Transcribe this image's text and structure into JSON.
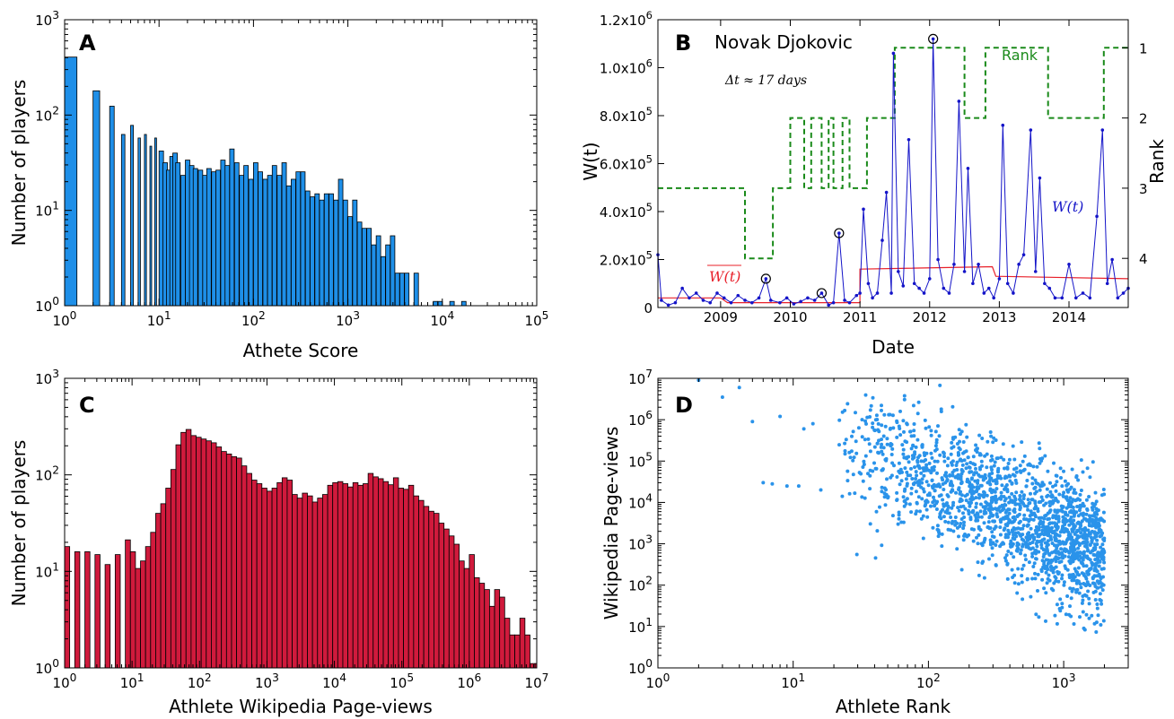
{
  "chart_data": [
    {
      "panel": "A",
      "type": "bar",
      "xscale": "log",
      "yscale": "log",
      "xlim": [
        1,
        100000
      ],
      "ylim": [
        0.9,
        1000
      ],
      "xlabel": "Athete Score",
      "ylabel": "Number of players",
      "x_ticks": [
        "10^0",
        "10^1",
        "10^2",
        "10^3",
        "10^4",
        "10^5"
      ],
      "y_ticks": [
        "10^0",
        "10^1",
        "10^2",
        "10^3"
      ],
      "color": "#1e8fe8",
      "bins": [
        {
          "x": 1,
          "y": 400
        },
        {
          "x": 2,
          "y": 175
        },
        {
          "x": 3,
          "y": 120
        },
        {
          "x": 4,
          "y": 60
        },
        {
          "x": 5,
          "y": 75
        },
        {
          "x": 6,
          "y": 55
        },
        {
          "x": 7,
          "y": 60
        },
        {
          "x": 8,
          "y": 45
        },
        {
          "x": 9,
          "y": 55
        },
        {
          "x": 10,
          "y": 40
        },
        {
          "x": 11,
          "y": 30
        },
        {
          "x": 12,
          "y": 25
        },
        {
          "x": 13,
          "y": 35
        },
        {
          "x": 14,
          "y": 38
        },
        {
          "x": 15,
          "y": 30
        },
        {
          "x": 17,
          "y": 22
        },
        {
          "x": 19,
          "y": 32
        },
        {
          "x": 21,
          "y": 28
        },
        {
          "x": 23,
          "y": 26
        },
        {
          "x": 26,
          "y": 25
        },
        {
          "x": 29,
          "y": 22
        },
        {
          "x": 32,
          "y": 26
        },
        {
          "x": 36,
          "y": 24
        },
        {
          "x": 40,
          "y": 25
        },
        {
          "x": 45,
          "y": 32
        },
        {
          "x": 50,
          "y": 28
        },
        {
          "x": 56,
          "y": 42
        },
        {
          "x": 63,
          "y": 30
        },
        {
          "x": 71,
          "y": 22
        },
        {
          "x": 79,
          "y": 28
        },
        {
          "x": 89,
          "y": 20
        },
        {
          "x": 100,
          "y": 30
        },
        {
          "x": 112,
          "y": 24
        },
        {
          "x": 126,
          "y": 20
        },
        {
          "x": 141,
          "y": 22
        },
        {
          "x": 158,
          "y": 28
        },
        {
          "x": 178,
          "y": 22
        },
        {
          "x": 200,
          "y": 30
        },
        {
          "x": 224,
          "y": 17
        },
        {
          "x": 251,
          "y": 20
        },
        {
          "x": 282,
          "y": 24
        },
        {
          "x": 316,
          "y": 24
        },
        {
          "x": 355,
          "y": 15
        },
        {
          "x": 398,
          "y": 13
        },
        {
          "x": 447,
          "y": 14
        },
        {
          "x": 501,
          "y": 12
        },
        {
          "x": 562,
          "y": 14
        },
        {
          "x": 631,
          "y": 14
        },
        {
          "x": 708,
          "y": 12
        },
        {
          "x": 794,
          "y": 20
        },
        {
          "x": 891,
          "y": 12
        },
        {
          "x": 1000,
          "y": 8
        },
        {
          "x": 1122,
          "y": 12
        },
        {
          "x": 1259,
          "y": 7
        },
        {
          "x": 1413,
          "y": 6
        },
        {
          "x": 1585,
          "y": 6
        },
        {
          "x": 1778,
          "y": 4
        },
        {
          "x": 1995,
          "y": 5
        },
        {
          "x": 2239,
          "y": 3
        },
        {
          "x": 2512,
          "y": 4
        },
        {
          "x": 2818,
          "y": 5
        },
        {
          "x": 3162,
          "y": 2
        },
        {
          "x": 3548,
          "y": 2
        },
        {
          "x": 3981,
          "y": 2
        },
        {
          "x": 5012,
          "y": 2
        },
        {
          "x": 8000,
          "y": 1
        },
        {
          "x": 9000,
          "y": 1
        },
        {
          "x": 12000,
          "y": 1
        },
        {
          "x": 16000,
          "y": 1
        }
      ]
    },
    {
      "panel": "B",
      "type": "line",
      "title": "Novak Djokovic",
      "annotation": "Δt ≈ 17 days",
      "xlabel": "Date",
      "ylabel_left": "W(t)",
      "ylabel_right": "Rank",
      "x_ticks": [
        "2009",
        "2010",
        "2011",
        "2012",
        "2013",
        "2014"
      ],
      "xlim": [
        2008.1,
        2014.85
      ],
      "y_left_lim": [
        0,
        1200000
      ],
      "y_left_ticks": [
        "0",
        "2.0x10^5",
        "4.0x10^5",
        "6.0x10^5",
        "8.0x10^5",
        "1.0x10^6",
        "1.2x10^6"
      ],
      "y_right_lim": [
        4.7,
        0.6
      ],
      "y_right_ticks": [
        "1",
        "2",
        "3",
        "4"
      ],
      "wt_label": "W(t)",
      "rank_label": "Rank",
      "threshold_label": "W(t)",
      "colors": {
        "wt": "#1414c8",
        "threshold": "#e8202a",
        "rank": "#1a8a1a"
      },
      "wt_series": [
        [
          2008.1,
          220000
        ],
        [
          2008.15,
          30000
        ],
        [
          2008.25,
          10000
        ],
        [
          2008.35,
          20000
        ],
        [
          2008.45,
          80000
        ],
        [
          2008.55,
          40000
        ],
        [
          2008.65,
          60000
        ],
        [
          2008.75,
          30000
        ],
        [
          2008.85,
          20000
        ],
        [
          2008.95,
          60000
        ],
        [
          2009.05,
          40000
        ],
        [
          2009.15,
          20000
        ],
        [
          2009.25,
          50000
        ],
        [
          2009.35,
          30000
        ],
        [
          2009.45,
          20000
        ],
        [
          2009.55,
          40000
        ],
        [
          2009.65,
          120000
        ],
        [
          2009.72,
          30000
        ],
        [
          2009.85,
          20000
        ],
        [
          2009.95,
          40000
        ],
        [
          2010.05,
          15000
        ],
        [
          2010.15,
          25000
        ],
        [
          2010.25,
          40000
        ],
        [
          2010.35,
          30000
        ],
        [
          2010.45,
          60000
        ],
        [
          2010.55,
          10000
        ],
        [
          2010.62,
          20000
        ],
        [
          2010.7,
          310000
        ],
        [
          2010.78,
          30000
        ],
        [
          2010.85,
          20000
        ],
        [
          2010.95,
          50000
        ],
        [
          2011.0,
          60000
        ],
        [
          2011.05,
          410000
        ],
        [
          2011.12,
          100000
        ],
        [
          2011.18,
          40000
        ],
        [
          2011.25,
          60000
        ],
        [
          2011.32,
          280000
        ],
        [
          2011.38,
          480000
        ],
        [
          2011.45,
          60000
        ],
        [
          2011.48,
          1060000
        ],
        [
          2011.55,
          150000
        ],
        [
          2011.62,
          90000
        ],
        [
          2011.7,
          700000
        ],
        [
          2011.78,
          100000
        ],
        [
          2011.85,
          80000
        ],
        [
          2011.92,
          60000
        ],
        [
          2012.0,
          120000
        ],
        [
          2012.05,
          1120000
        ],
        [
          2012.12,
          200000
        ],
        [
          2012.2,
          80000
        ],
        [
          2012.28,
          60000
        ],
        [
          2012.35,
          180000
        ],
        [
          2012.42,
          860000
        ],
        [
          2012.5,
          150000
        ],
        [
          2012.55,
          580000
        ],
        [
          2012.62,
          100000
        ],
        [
          2012.7,
          180000
        ],
        [
          2012.78,
          60000
        ],
        [
          2012.85,
          80000
        ],
        [
          2012.92,
          40000
        ],
        [
          2013.0,
          120000
        ],
        [
          2013.05,
          760000
        ],
        [
          2013.12,
          100000
        ],
        [
          2013.2,
          60000
        ],
        [
          2013.28,
          180000
        ],
        [
          2013.35,
          220000
        ],
        [
          2013.45,
          740000
        ],
        [
          2013.52,
          150000
        ],
        [
          2013.58,
          540000
        ],
        [
          2013.65,
          100000
        ],
        [
          2013.72,
          80000
        ],
        [
          2013.8,
          40000
        ],
        [
          2013.9,
          40000
        ],
        [
          2014.0,
          180000
        ],
        [
          2014.1,
          40000
        ],
        [
          2014.2,
          60000
        ],
        [
          2014.3,
          40000
        ],
        [
          2014.4,
          380000
        ],
        [
          2014.48,
          740000
        ],
        [
          2014.55,
          100000
        ],
        [
          2014.62,
          200000
        ],
        [
          2014.7,
          40000
        ],
        [
          2014.78,
          60000
        ],
        [
          2014.85,
          80000
        ]
      ],
      "circled_peaks": [
        [
          2009.65,
          120000
        ],
        [
          2010.45,
          60000
        ],
        [
          2010.7,
          310000
        ],
        [
          2012.05,
          1120000
        ]
      ],
      "threshold_series": [
        [
          2008.1,
          40000
        ],
        [
          2009.0,
          40000
        ],
        [
          2009.1,
          20000
        ],
        [
          2011.0,
          20000
        ],
        [
          2011.0,
          160000
        ],
        [
          2012.9,
          170000
        ],
        [
          2012.95,
          130000
        ],
        [
          2014.85,
          120000
        ]
      ],
      "rank_series": [
        [
          2008.1,
          3
        ],
        [
          2009.35,
          3
        ],
        [
          2009.35,
          4
        ],
        [
          2009.75,
          4
        ],
        [
          2009.75,
          3
        ],
        [
          2010.0,
          3
        ],
        [
          2010.0,
          2
        ],
        [
          2010.2,
          2
        ],
        [
          2010.2,
          3
        ],
        [
          2010.3,
          3
        ],
        [
          2010.3,
          2
        ],
        [
          2010.45,
          2
        ],
        [
          2010.45,
          3
        ],
        [
          2010.55,
          3
        ],
        [
          2010.55,
          2
        ],
        [
          2010.62,
          2
        ],
        [
          2010.62,
          3
        ],
        [
          2010.75,
          3
        ],
        [
          2010.75,
          2
        ],
        [
          2010.85,
          2
        ],
        [
          2010.85,
          3
        ],
        [
          2011.1,
          3
        ],
        [
          2011.1,
          2
        ],
        [
          2011.5,
          2
        ],
        [
          2011.5,
          1
        ],
        [
          2012.5,
          1
        ],
        [
          2012.5,
          2
        ],
        [
          2012.8,
          2
        ],
        [
          2012.8,
          1
        ],
        [
          2013.7,
          1
        ],
        [
          2013.7,
          2
        ],
        [
          2014.5,
          2
        ],
        [
          2014.5,
          1
        ],
        [
          2014.85,
          1
        ]
      ]
    },
    {
      "panel": "C",
      "type": "bar",
      "xscale": "log",
      "yscale": "log",
      "xlim": [
        1,
        10000000
      ],
      "ylim": [
        0.9,
        1000
      ],
      "xlabel": "Athlete Wikipedia Page-views",
      "ylabel": "Number of players",
      "x_ticks": [
        "10^0",
        "10^1",
        "10^2",
        "10^3",
        "10^4",
        "10^5",
        "10^6",
        "10^7"
      ],
      "y_ticks": [
        "10^0",
        "10^1",
        "10^2",
        "10^3"
      ],
      "color": "#d01a3c",
      "bin_start": 1.0,
      "bin_ratio": 1.1885,
      "counts": [
        17,
        0,
        15,
        0,
        15,
        0,
        14,
        0,
        11,
        0,
        14,
        0,
        20,
        15,
        10,
        12,
        17,
        24,
        38,
        48,
        70,
        110,
        200,
        270,
        290,
        250,
        240,
        230,
        220,
        210,
        190,
        170,
        160,
        150,
        145,
        120,
        100,
        85,
        78,
        70,
        65,
        70,
        80,
        90,
        85,
        60,
        55,
        62,
        58,
        50,
        55,
        60,
        75,
        80,
        82,
        78,
        72,
        80,
        75,
        78,
        100,
        92,
        88,
        82,
        76,
        90,
        70,
        68,
        75,
        58,
        52,
        45,
        40,
        38,
        30,
        26,
        22,
        18,
        12,
        10,
        14,
        8,
        7,
        6,
        4,
        6,
        5,
        3,
        2,
        2,
        3,
        2,
        1,
        1,
        2,
        1,
        1,
        4,
        1,
        2,
        1,
        1,
        1,
        1,
        1,
        1
      ]
    },
    {
      "panel": "D",
      "type": "scatter",
      "xscale": "log",
      "yscale": "log",
      "xlim": [
        1,
        3000
      ],
      "ylim": [
        1,
        10000000
      ],
      "xlabel": "Athlete Rank",
      "ylabel": "Wikipedia Page-views",
      "x_ticks": [
        "10^0",
        "10^1",
        "10^2",
        "10^3"
      ],
      "y_ticks": [
        "10^0",
        "10^1",
        "10^2",
        "10^3",
        "10^4",
        "10^5",
        "10^6",
        "10^7"
      ],
      "color": "#2a93ea",
      "n_points": 1800,
      "trend": "page-views decrease with rank; dense cloud around rank 500-2000 at 10^1-10^3 views"
    }
  ]
}
